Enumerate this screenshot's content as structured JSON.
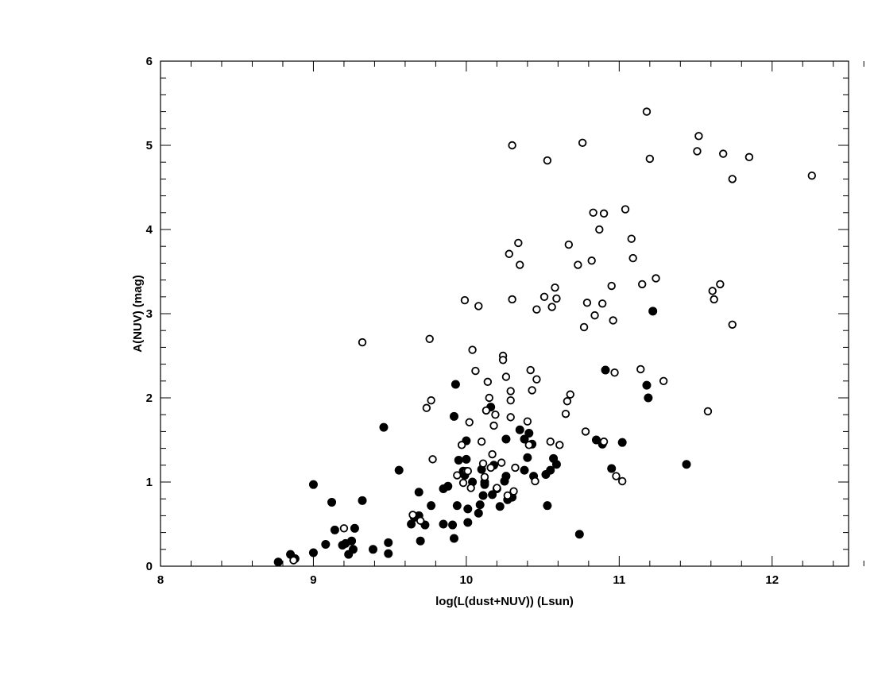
{
  "chart_data": {
    "type": "scatter",
    "xlabel": "log(L(dust+NUV))  (Lsun)",
    "ylabel": "A(NUV)  (mag)",
    "xlim": [
      8,
      12.5
    ],
    "ylim": [
      0,
      6
    ],
    "xticks": [
      8,
      9,
      10,
      11,
      12
    ],
    "yticks": [
      0,
      1,
      2,
      3,
      4,
      5,
      6
    ],
    "xtick_labels": [
      "8",
      "9",
      "10",
      "11",
      "12"
    ],
    "ytick_labels": [
      "0",
      "1",
      "2",
      "3",
      "4",
      "5",
      "6"
    ],
    "grid": false,
    "series": [
      {
        "marker": "filled-circle",
        "color": "#000000",
        "points": [
          [
            8.77,
            0.05
          ],
          [
            8.85,
            0.14
          ],
          [
            8.88,
            0.09
          ],
          [
            9.0,
            0.97
          ],
          [
            9.0,
            0.16
          ],
          [
            9.08,
            0.26
          ],
          [
            9.12,
            0.76
          ],
          [
            9.14,
            0.43
          ],
          [
            9.19,
            0.25
          ],
          [
            9.21,
            0.27
          ],
          [
            9.23,
            0.14
          ],
          [
            9.25,
            0.3
          ],
          [
            9.26,
            0.2
          ],
          [
            9.27,
            0.45
          ],
          [
            9.32,
            0.78
          ],
          [
            9.39,
            0.2
          ],
          [
            9.46,
            1.65
          ],
          [
            9.49,
            0.28
          ],
          [
            9.49,
            0.15
          ],
          [
            9.56,
            1.14
          ],
          [
            9.64,
            0.5
          ],
          [
            9.66,
            0.58
          ],
          [
            9.69,
            0.88
          ],
          [
            9.69,
            0.6
          ],
          [
            9.7,
            0.3
          ],
          [
            9.73,
            0.49
          ],
          [
            9.77,
            0.72
          ],
          [
            9.85,
            0.92
          ],
          [
            9.85,
            0.5
          ],
          [
            9.88,
            0.95
          ],
          [
            9.91,
            0.49
          ],
          [
            9.92,
            0.33
          ],
          [
            9.92,
            1.78
          ],
          [
            9.93,
            2.16
          ],
          [
            9.94,
            0.72
          ],
          [
            9.95,
            1.26
          ],
          [
            9.98,
            1.13
          ],
          [
            9.99,
            1.08
          ],
          [
            10.0,
            1.49
          ],
          [
            10.0,
            1.27
          ],
          [
            10.01,
            0.52
          ],
          [
            10.01,
            0.68
          ],
          [
            10.04,
            1.0
          ],
          [
            10.08,
            0.63
          ],
          [
            10.09,
            0.73
          ],
          [
            10.1,
            1.15
          ],
          [
            10.11,
            0.84
          ],
          [
            10.12,
            0.97
          ],
          [
            10.12,
            1.0
          ],
          [
            10.16,
            1.89
          ],
          [
            10.17,
            0.85
          ],
          [
            10.18,
            1.2
          ],
          [
            10.2,
            0.92
          ],
          [
            10.22,
            0.71
          ],
          [
            10.25,
            1.01
          ],
          [
            10.26,
            1.51
          ],
          [
            10.26,
            1.07
          ],
          [
            10.27,
            0.79
          ],
          [
            10.3,
            0.82
          ],
          [
            10.35,
            1.62
          ],
          [
            10.38,
            1.14
          ],
          [
            10.38,
            1.51
          ],
          [
            10.4,
            1.29
          ],
          [
            10.41,
            1.58
          ],
          [
            10.43,
            1.45
          ],
          [
            10.44,
            1.07
          ],
          [
            10.52,
            1.09
          ],
          [
            10.53,
            0.72
          ],
          [
            10.55,
            1.14
          ],
          [
            10.57,
            1.28
          ],
          [
            10.59,
            1.21
          ],
          [
            10.74,
            0.38
          ],
          [
            10.85,
            1.5
          ],
          [
            10.89,
            1.45
          ],
          [
            10.91,
            2.33
          ],
          [
            10.95,
            1.16
          ],
          [
            11.02,
            1.47
          ],
          [
            11.18,
            2.15
          ],
          [
            11.19,
            2.0
          ],
          [
            11.22,
            3.03
          ],
          [
            11.44,
            1.21
          ]
        ]
      },
      {
        "marker": "open-circle",
        "color": "#000000",
        "points": [
          [
            8.87,
            0.07
          ],
          [
            9.2,
            0.45
          ],
          [
            9.32,
            2.66
          ],
          [
            9.65,
            0.61
          ],
          [
            9.7,
            0.54
          ],
          [
            9.74,
            1.88
          ],
          [
            9.76,
            2.7
          ],
          [
            9.77,
            1.97
          ],
          [
            9.78,
            1.27
          ],
          [
            9.94,
            1.08
          ],
          [
            9.97,
            1.44
          ],
          [
            9.98,
            0.99
          ],
          [
            9.99,
            3.16
          ],
          [
            10.0,
            1.13
          ],
          [
            10.01,
            1.13
          ],
          [
            10.02,
            1.71
          ],
          [
            10.03,
            0.93
          ],
          [
            10.04,
            2.57
          ],
          [
            10.06,
            2.32
          ],
          [
            10.08,
            3.09
          ],
          [
            10.1,
            1.48
          ],
          [
            10.11,
            1.22
          ],
          [
            10.12,
            1.06
          ],
          [
            10.13,
            1.85
          ],
          [
            10.14,
            2.19
          ],
          [
            10.15,
            2.0
          ],
          [
            10.16,
            1.17
          ],
          [
            10.17,
            1.33
          ],
          [
            10.18,
            1.67
          ],
          [
            10.19,
            1.8
          ],
          [
            10.2,
            0.93
          ],
          [
            10.23,
            1.23
          ],
          [
            10.24,
            2.5
          ],
          [
            10.24,
            2.45
          ],
          [
            10.26,
            2.25
          ],
          [
            10.27,
            0.84
          ],
          [
            10.28,
            3.71
          ],
          [
            10.29,
            2.08
          ],
          [
            10.29,
            1.97
          ],
          [
            10.29,
            1.77
          ],
          [
            10.3,
            3.17
          ],
          [
            10.3,
            5.0
          ],
          [
            10.31,
            0.89
          ],
          [
            10.32,
            1.17
          ],
          [
            10.34,
            3.84
          ],
          [
            10.35,
            3.58
          ],
          [
            10.4,
            1.72
          ],
          [
            10.41,
            1.44
          ],
          [
            10.42,
            2.33
          ],
          [
            10.43,
            2.09
          ],
          [
            10.45,
            1.01
          ],
          [
            10.46,
            2.22
          ],
          [
            10.46,
            3.05
          ],
          [
            10.51,
            3.2
          ],
          [
            10.53,
            4.82
          ],
          [
            10.55,
            1.48
          ],
          [
            10.56,
            3.08
          ],
          [
            10.58,
            3.31
          ],
          [
            10.59,
            3.18
          ],
          [
            10.61,
            1.44
          ],
          [
            10.65,
            1.81
          ],
          [
            10.66,
            1.96
          ],
          [
            10.67,
            3.82
          ],
          [
            10.68,
            2.04
          ],
          [
            10.73,
            3.58
          ],
          [
            10.76,
            5.03
          ],
          [
            10.77,
            2.84
          ],
          [
            10.78,
            1.6
          ],
          [
            10.79,
            3.13
          ],
          [
            10.82,
            3.63
          ],
          [
            10.83,
            4.2
          ],
          [
            10.84,
            2.98
          ],
          [
            10.87,
            4.0
          ],
          [
            10.89,
            3.12
          ],
          [
            10.9,
            4.19
          ],
          [
            10.9,
            1.48
          ],
          [
            10.95,
            3.33
          ],
          [
            10.96,
            2.92
          ],
          [
            10.97,
            2.3
          ],
          [
            10.98,
            1.07
          ],
          [
            11.02,
            1.01
          ],
          [
            11.04,
            4.24
          ],
          [
            11.08,
            3.89
          ],
          [
            11.09,
            3.66
          ],
          [
            11.14,
            2.34
          ],
          [
            11.15,
            3.35
          ],
          [
            11.18,
            5.4
          ],
          [
            11.2,
            4.84
          ],
          [
            11.24,
            3.42
          ],
          [
            11.29,
            2.2
          ],
          [
            11.51,
            4.93
          ],
          [
            11.52,
            5.11
          ],
          [
            11.58,
            1.84
          ],
          [
            11.61,
            3.27
          ],
          [
            11.62,
            3.17
          ],
          [
            11.66,
            3.35
          ],
          [
            11.68,
            4.9
          ],
          [
            11.74,
            4.6
          ],
          [
            11.74,
            2.87
          ],
          [
            11.85,
            4.86
          ],
          [
            12.26,
            4.64
          ]
        ]
      }
    ]
  }
}
